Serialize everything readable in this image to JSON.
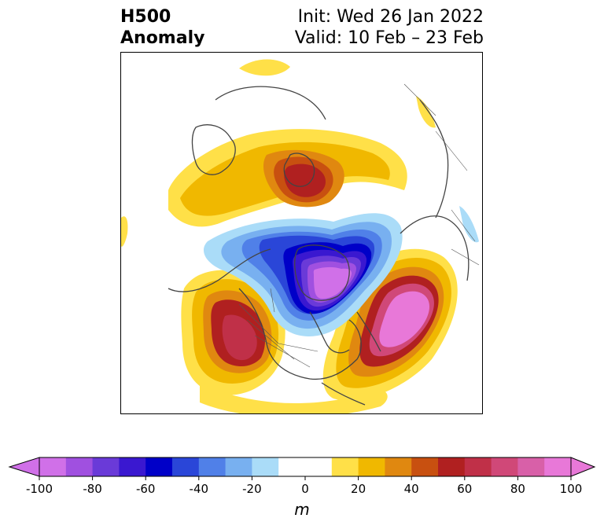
{
  "title": {
    "left_line1": "H500",
    "left_line2": "Anomaly",
    "right_line1": "Init: Wed 26 Jan 2022",
    "right_line2": "Valid: 10 Feb – 23 Feb"
  },
  "colorbar": {
    "unit": "m",
    "ticks": [
      "-100",
      "-80",
      "-60",
      "-40",
      "-20",
      "0",
      "20",
      "40",
      "60",
      "80",
      "100"
    ],
    "min": -100,
    "max": 100,
    "step": 10,
    "colors": [
      "#d070e8",
      "#a050e0",
      "#6a3ad8",
      "#3a18d0",
      "#0000c8",
      "#2a46d8",
      "#5080e8",
      "#78b0f0",
      "#aadcf8",
      "#ffffff",
      "#ffffff",
      "#ffe048",
      "#f0b800",
      "#e08810",
      "#c85010",
      "#b02020",
      "#c03048",
      "#d04878",
      "#d860a8",
      "#e878d8"
    ],
    "extend": "both"
  },
  "map": {
    "projection": "north-polar",
    "variable": "500 hPa geopotential height anomaly"
  }
}
